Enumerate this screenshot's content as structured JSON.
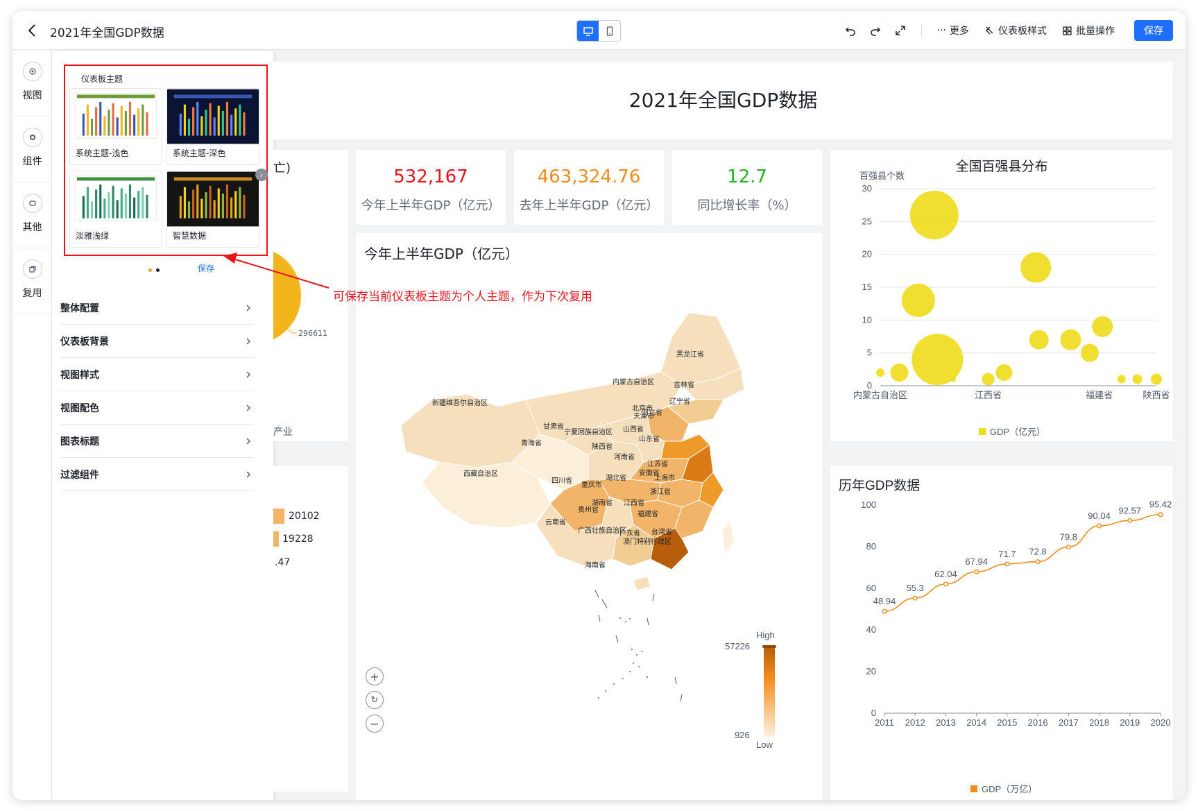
{
  "app": {
    "title": "2021年全国GDP数据",
    "toolbar": {
      "more_label": "更多",
      "theme_label": "仪表板样式",
      "batch_label": "批量操作",
      "save_label": "保存"
    }
  },
  "rail": {
    "items": [
      {
        "label": "视图",
        "icon": "view-icon"
      },
      {
        "label": "组件",
        "icon": "component-icon"
      },
      {
        "label": "其他",
        "icon": "other-icon"
      },
      {
        "label": "复用",
        "icon": "reuse-icon"
      }
    ]
  },
  "panel": {
    "theme_heading": "仪表板主题",
    "themes": [
      {
        "name": "系统主题-浅色",
        "header_color": "#6f9a3b",
        "bg": "#ffffff"
      },
      {
        "name": "系统主题-深色",
        "header_color": "#3a57b6",
        "bg": "#0f1a3a"
      },
      {
        "name": "淡雅浅绿",
        "header_color": "#3f8f3f",
        "bg": "#ffffff"
      },
      {
        "name": "智慧数据",
        "header_color": "#c98b1a",
        "bg": "#121212"
      }
    ],
    "save_label": "保存",
    "menu": [
      "整体配置",
      "仪表板背景",
      "视图样式",
      "视图配色",
      "图表标题",
      "过滤组件"
    ]
  },
  "annotation": "可保存当前仪表板主题为个人主题，作为下次复用",
  "dashboard": {
    "title": "2021年全国GDP数据",
    "kpis": [
      {
        "value": "532,167",
        "label": "今年上半年GDP（亿元）",
        "color": "#e8141b"
      },
      {
        "value": "463,324.76",
        "label": "去年上半年GDP（亿元）",
        "color": "#f28c1a"
      },
      {
        "value": "12.7",
        "label": "同比增长率（%）",
        "color": "#1fb51f"
      }
    ],
    "partial": {
      "top_fragment": "亡)",
      "pie_label": "296611",
      "bottom_fragment": "产业",
      "bar_values": [
        "20102",
        "19228",
        ".47"
      ]
    },
    "map": {
      "title": "今年上半年GDP（亿元）",
      "legend_high": "High",
      "legend_low": "Low",
      "legend_max": "57226",
      "legend_min": "926",
      "provinces": [
        "黑龙江省",
        "吉林省",
        "辽宁省",
        "内蒙古自治区",
        "新疆维吾尔自治区",
        "甘肃省",
        "宁夏回族自治区",
        "北京市",
        "天津市",
        "河北省",
        "山西省",
        "山东省",
        "陕西省",
        "青海省",
        "河南省",
        "江苏省",
        "安徽省",
        "上海市",
        "西藏自治区",
        "四川省",
        "湖北省",
        "重庆市",
        "浙江省",
        "江西省",
        "湖南省",
        "贵州省",
        "福建省",
        "云南省",
        "广西壮族自治区",
        "广东省",
        "台湾省",
        "澳门特别行政区",
        "海南省"
      ]
    }
  },
  "chart_data": [
    {
      "type": "scatter",
      "title": "全国百强县分布",
      "ylabel": "百强县个数",
      "ylim": [
        0,
        30
      ],
      "yticks": [
        0,
        5,
        10,
        15,
        20,
        25,
        30
      ],
      "xticks": [
        "内蒙古自治区",
        "江西省",
        "福建省",
        "陕西省"
      ],
      "series": [
        {
          "name": "GDP（亿元）",
          "color": "#eedb1a"
        }
      ],
      "points": [
        {
          "x": 0.0,
          "y": 2,
          "size": 6
        },
        {
          "x": 0.6,
          "y": 2,
          "size": 13
        },
        {
          "x": 1.2,
          "y": 13,
          "size": 24
        },
        {
          "x": 1.7,
          "y": 26,
          "size": 35
        },
        {
          "x": 1.8,
          "y": 4,
          "size": 37
        },
        {
          "x": 2.3,
          "y": 1,
          "size": 4
        },
        {
          "x": 3.4,
          "y": 1,
          "size": 9
        },
        {
          "x": 3.9,
          "y": 2,
          "size": 12
        },
        {
          "x": 4.9,
          "y": 18,
          "size": 22
        },
        {
          "x": 5.0,
          "y": 7,
          "size": 14
        },
        {
          "x": 6.0,
          "y": 7,
          "size": 15
        },
        {
          "x": 6.6,
          "y": 5,
          "size": 13
        },
        {
          "x": 7.0,
          "y": 9,
          "size": 15
        },
        {
          "x": 7.6,
          "y": 1,
          "size": 6
        },
        {
          "x": 8.1,
          "y": 1,
          "size": 7
        },
        {
          "x": 8.7,
          "y": 1,
          "size": 8
        }
      ]
    },
    {
      "type": "line",
      "title": "历年GDP数据",
      "categories": [
        "2011",
        "2012",
        "2013",
        "2014",
        "2015",
        "2016",
        "2017",
        "2018",
        "2019",
        "2020"
      ],
      "ylim": [
        0,
        100
      ],
      "yticks": [
        0,
        20,
        40,
        60,
        80,
        100
      ],
      "series": [
        {
          "name": "GDP（万亿）",
          "color": "#f28c1a",
          "values": [
            48.94,
            55.3,
            62.04,
            67.94,
            71.7,
            72.8,
            79.8,
            90.04,
            92.57,
            95.42
          ]
        }
      ]
    }
  ]
}
